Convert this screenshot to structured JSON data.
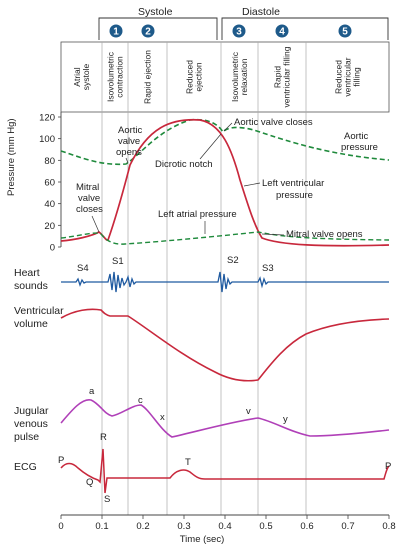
{
  "header": {
    "systole": "Systole",
    "diastole": "Diastole",
    "phase_numbers": [
      "1",
      "2",
      "3",
      "4",
      "5"
    ]
  },
  "phases": [
    {
      "id": "atrial-systole",
      "lines": [
        "Atrial",
        "systole"
      ]
    },
    {
      "id": "isovolumetric-contraction",
      "lines": [
        "Isovolumetric",
        "contraction"
      ]
    },
    {
      "id": "rapid-ejection",
      "lines": [
        "Rapid ejection"
      ]
    },
    {
      "id": "reduced-ejection",
      "lines": [
        "Reduced",
        "ejection"
      ]
    },
    {
      "id": "isovolumetric-relaxation",
      "lines": [
        "Isovolumetric",
        "relaxation"
      ]
    },
    {
      "id": "rapid-ventricular-filling",
      "lines": [
        "Rapid",
        "ventricular filling"
      ]
    },
    {
      "id": "reduced-ventricular-filling",
      "lines": [
        "Reduced",
        "ventricular",
        "filling"
      ]
    }
  ],
  "pressure_axis": {
    "label": "Pressure (mm Hg)",
    "ticks": [
      "0",
      "20",
      "40",
      "60",
      "80",
      "100",
      "120"
    ]
  },
  "annotations": {
    "aortic_valve_opens": [
      "Aortic",
      "valve",
      "opens"
    ],
    "aortic_valve_closes": "Aortic valve closes",
    "aortic_pressure": [
      "Aortic",
      "pressure"
    ],
    "dicrotic_notch": "Dicrotic notch",
    "left_ventricular_pressure": [
      "Left ventricular",
      "pressure"
    ],
    "mitral_valve_closes": [
      "Mitral",
      "valve",
      "closes"
    ],
    "left_atrial_pressure": "Left atrial pressure",
    "mitral_valve_opens": "Mitral valve opens"
  },
  "rows": {
    "heart_sounds": [
      "Heart",
      "sounds"
    ],
    "ventricular_volume": [
      "Ventricular",
      "volume"
    ],
    "jugular_venous_pulse": [
      "Jugular",
      "venous",
      "pulse"
    ],
    "ecg": "ECG"
  },
  "sounds": {
    "s4": "S4",
    "s1": "S1",
    "s2": "S2",
    "s3": "S3"
  },
  "jvp_waves": {
    "a": "a",
    "c": "c",
    "x": "x",
    "v": "v",
    "y": "y"
  },
  "ecg_waves": {
    "p_start": "P",
    "q": "Q",
    "r": "R",
    "s": "S",
    "t": "T",
    "p_end": "P"
  },
  "time_axis": {
    "label": "Time (sec)",
    "ticks": [
      "0",
      "0.1",
      "0.2",
      "0.3",
      "0.4",
      "0.5",
      "0.6",
      "0.7",
      "0.8"
    ]
  },
  "colors": {
    "pressure_red": "#c8283c",
    "aortic_green": "#1f8a3c",
    "sound_blue": "#1f5aa0",
    "jvp_purple": "#b040b8",
    "phase_blue": "#1e5a8a"
  }
}
